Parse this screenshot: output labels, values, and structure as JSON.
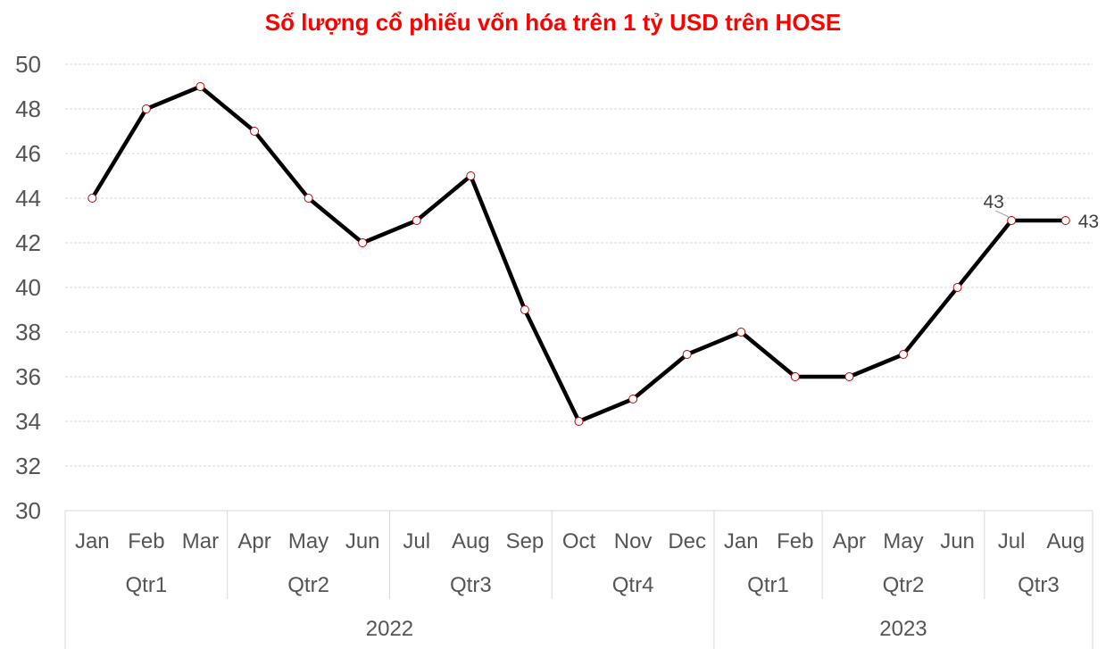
{
  "chart_data": {
    "type": "line",
    "title": "Số lượng cổ phiếu vốn hóa trên 1 tỷ USD trên HOSE",
    "xlabel": "",
    "ylabel": "",
    "ylim": [
      30,
      50
    ],
    "yticks": [
      "30",
      "32",
      "34",
      "36",
      "38",
      "40",
      "42",
      "44",
      "46",
      "48",
      "50"
    ],
    "grid": true,
    "legend": "none",
    "categories": [
      "Jan",
      "Feb",
      "Mar",
      "Apr",
      "May",
      "Jun",
      "Jul",
      "Aug",
      "Sep",
      "Oct",
      "Nov",
      "Dec",
      "Jan",
      "Feb",
      "Apr",
      "May",
      "Jun",
      "Jul",
      "Aug"
    ],
    "values": [
      44,
      48,
      49,
      47,
      44,
      42,
      43,
      45,
      39,
      34,
      35,
      37,
      38,
      36,
      36,
      37,
      40,
      43,
      43
    ],
    "quarters": [
      {
        "label": "Qtr1",
        "span": 3
      },
      {
        "label": "Qtr2",
        "span": 3
      },
      {
        "label": "Qtr3",
        "span": 3
      },
      {
        "label": "Qtr4",
        "span": 3
      },
      {
        "label": "Qtr1",
        "span": 2
      },
      {
        "label": "Qtr2",
        "span": 3
      },
      {
        "label": "Qtr3",
        "span": 2
      }
    ],
    "years": [
      {
        "label": "2022",
        "span": 12
      },
      {
        "label": "2023",
        "span": 7
      }
    ],
    "data_labels": [
      {
        "index": 17,
        "text": "43"
      },
      {
        "index": 18,
        "text": "43"
      }
    ],
    "colors": {
      "title": "#ff0000",
      "line": "#000000",
      "marker_fill": "#ffffff",
      "marker_stroke": "#c00000",
      "grid": "#d9d9d9",
      "axis": "#d9d9d9",
      "tick_text": "#555555"
    }
  }
}
